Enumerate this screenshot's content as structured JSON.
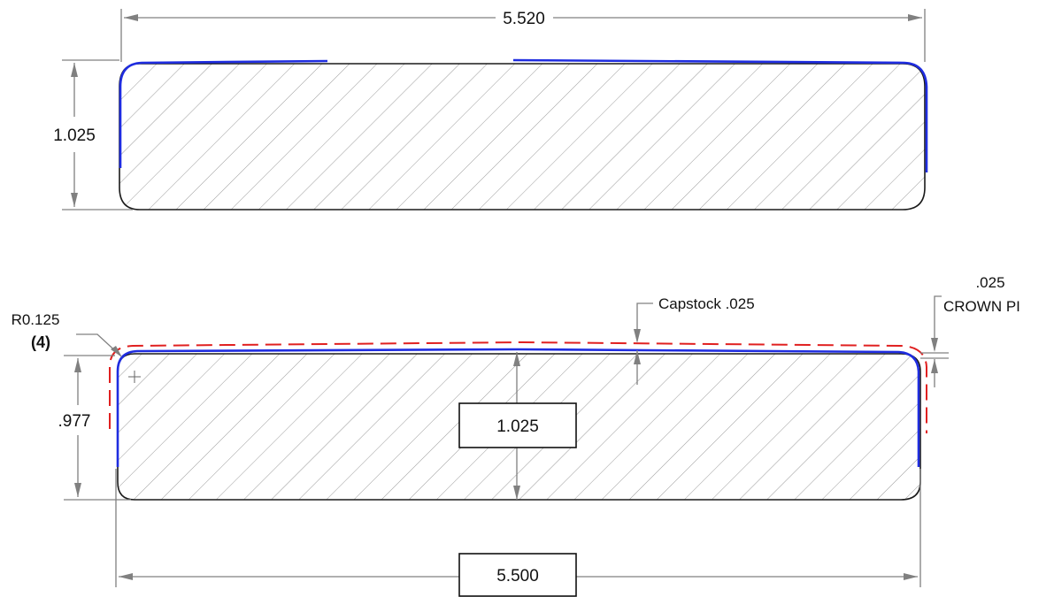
{
  "top_view": {
    "width_dim": "5.520",
    "height_dim": "1.025"
  },
  "section_view": {
    "radius_note": "R0.125",
    "radius_count": "(4)",
    "height_left_dim": ".977",
    "center_height_dim": "1.025",
    "capstock_note": "Capstock .025",
    "crown_value": ".025",
    "crown_note": "CROWN PI",
    "width_dim": "5.500"
  },
  "colors": {
    "outline": "#1a1a1a",
    "capstock_line": "#1f2de0",
    "offset_line": "#e02020",
    "dimension": "#808080"
  }
}
